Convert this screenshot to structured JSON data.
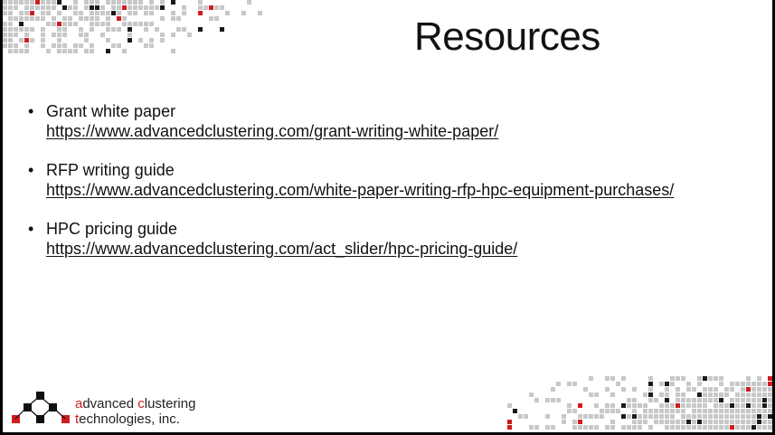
{
  "slide": {
    "title": "Resources",
    "items": [
      {
        "label": "Grant white paper",
        "url": "https://www.advancedclustering.com/grant-writing-white-paper/"
      },
      {
        "label": "RFP writing guide",
        "url": "https://www.advancedclustering.com/white-paper-writing-rfp-hpc-equipment-purchases/"
      },
      {
        "label": "HPC pricing guide",
        "url": "https://www.advancedclustering.com/act_slider/hpc-pricing-guide/"
      }
    ]
  },
  "logo": {
    "line1_first": "a",
    "line1_rest": "dvanced ",
    "line1_c": "c",
    "line1_tail": "lustering",
    "line2_first": "t",
    "line2_rest": "echnologies, inc."
  },
  "colors": {
    "accent": "#d01c1c",
    "text": "#111111",
    "mosaic_light": "#c8c8c8",
    "mosaic_dark": "#1a1a1a"
  }
}
